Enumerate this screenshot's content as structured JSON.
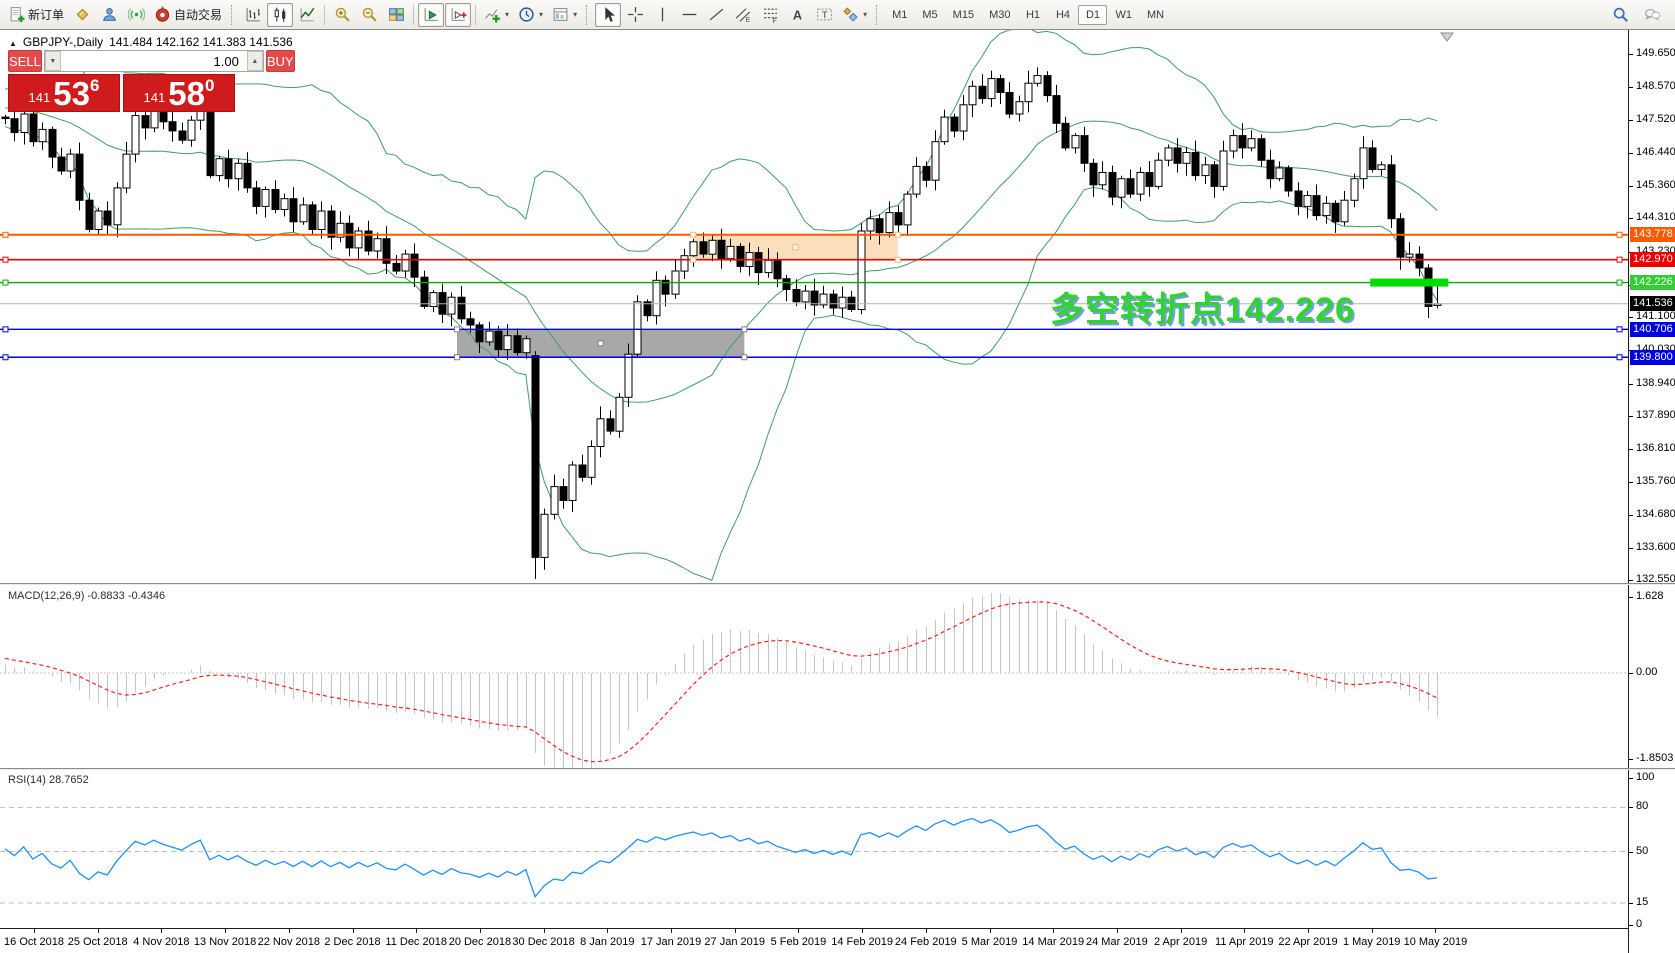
{
  "toolbar": {
    "caret_glyph": "▾",
    "file_group": [
      {
        "name": "new-order-button",
        "icon": "doc-plus",
        "label": "新订单"
      },
      {
        "name": "market-watch-button",
        "icon": "gold-diamond"
      },
      {
        "name": "accounts-button",
        "icon": "user-blue"
      },
      {
        "name": "signals-button",
        "icon": "signal-green"
      },
      {
        "name": "autotrading-button",
        "icon": "robot-red",
        "label": "自动交易"
      }
    ],
    "chart_type_group": [
      {
        "name": "bar-chart-button",
        "icon": "bars"
      },
      {
        "name": "candlestick-button",
        "icon": "candles",
        "active": true
      },
      {
        "name": "line-chart-button",
        "icon": "line"
      }
    ],
    "zoom_group": [
      {
        "name": "zoom-in-button",
        "icon": "zoom-in"
      },
      {
        "name": "zoom-out-button",
        "icon": "zoom-out"
      },
      {
        "name": "tile-windows-button",
        "icon": "tiles"
      }
    ],
    "scroll_group": [
      {
        "name": "auto-scroll-button",
        "icon": "auto-scroll",
        "active": true
      },
      {
        "name": "chart-shift-button",
        "icon": "chart-shift",
        "active": true
      }
    ],
    "insert_group": [
      {
        "name": "indicators-button",
        "icon": "indicator-plus",
        "caret": true
      },
      {
        "name": "periods-button",
        "icon": "clock",
        "caret": true
      },
      {
        "name": "templates-button",
        "icon": "template",
        "caret": true
      }
    ],
    "draw_group": [
      {
        "name": "cursor-button",
        "icon": "cursor",
        "active": true
      },
      {
        "name": "crosshair-button",
        "icon": "crosshair"
      },
      {
        "name": "vertical-line-button",
        "icon": "vline"
      },
      {
        "name": "horizontal-line-button",
        "icon": "hline"
      },
      {
        "name": "trendline-button",
        "icon": "trendline"
      },
      {
        "name": "equidistant-channel-button",
        "icon": "channel"
      },
      {
        "name": "fibonacci-button",
        "icon": "fibo"
      },
      {
        "name": "text-button",
        "icon": "text-a"
      },
      {
        "name": "text-label-button",
        "icon": "label-t"
      },
      {
        "name": "arrows-button",
        "icon": "shapes",
        "caret": true
      }
    ],
    "timeframes": [
      {
        "label": "M1"
      },
      {
        "label": "M5"
      },
      {
        "label": "M15"
      },
      {
        "label": "M30"
      },
      {
        "label": "H1"
      },
      {
        "label": "H4"
      },
      {
        "label": "D1",
        "active": true
      },
      {
        "label": "W1"
      },
      {
        "label": "MN"
      }
    ],
    "right_group": [
      {
        "name": "search-button",
        "icon": "search"
      },
      {
        "name": "chat-button",
        "icon": "chat"
      }
    ]
  },
  "chart_header": {
    "collapse_glyph": "▲",
    "symbol_period": "GBPJPY-,Daily",
    "ohlc": "141.484 142.162 141.383 141.536"
  },
  "trade_panel": {
    "sell_label": "SELL",
    "buy_label": "BUY",
    "volume": "1.00",
    "dec_glyph": "▼",
    "inc_glyph": "▲",
    "sell_price": {
      "prefix": "141",
      "big": "53",
      "sup": "6"
    },
    "buy_price": {
      "prefix": "141",
      "big": "58",
      "sup": "0"
    }
  },
  "annotation": {
    "text": "多空转折点142.226"
  },
  "panes": {
    "macd_label": "MACD(12,26,9) -0.8833 -0.4346",
    "rsi_label": "RSI(14) 28.7652"
  },
  "right_axis": {
    "price_ticks": [
      "149.650",
      "148.570",
      "147.520",
      "146.440",
      "145.360",
      "144.310",
      "143.230",
      "142.150",
      "141.100",
      "140.030",
      "138.940",
      "137.890",
      "136.810",
      "135.760",
      "134.680",
      "133.600",
      "132.550"
    ],
    "badges": [
      {
        "text": "143.778",
        "color": "#ff5a00"
      },
      {
        "text": "142.970",
        "color": "#ee0000"
      },
      {
        "text": "142.226",
        "color": "#33cc33"
      },
      {
        "text": "141.536",
        "color": "#000000"
      },
      {
        "text": "140.706",
        "color": "#0000dd"
      },
      {
        "text": "139.800",
        "color": "#0000dd"
      }
    ],
    "macd_ticks": [
      {
        "value": 1.628,
        "text": "1.628"
      },
      {
        "value": 0,
        "text": "0.00"
      },
      {
        "value": -1.8503,
        "text": "-1.8503"
      }
    ],
    "rsi_ticks": [
      {
        "value": 100,
        "text": "100"
      },
      {
        "value": 80,
        "text": "80"
      },
      {
        "value": 50,
        "text": "50"
      },
      {
        "value": 15,
        "text": "15"
      },
      {
        "value": 0,
        "text": "0"
      }
    ]
  },
  "colors": {
    "up": "#ffffff",
    "down": "#000000",
    "wick": "#000000",
    "bollinger": "#3da05f",
    "macd_hist": "#c4c4c4",
    "macd_signal": "#ff2020",
    "rsi": "#1e90ff",
    "line_orange": "#ff5a00",
    "line_red": "#ee0000",
    "line_green": "#0fa30f",
    "line_blue": "#0000e0",
    "bid_line": "#b4b4b4",
    "box_gray": "#a8a8a8",
    "box_peach": "#fbdfbd",
    "annotation_green": "#2fd42f",
    "annotation_shadow": "#7b9be8",
    "thick_green": "#00dd00"
  },
  "chart_data": {
    "type": "candlestick",
    "symbol": "GBPJPY-",
    "timeframe": "Daily",
    "last_candle": {
      "open": 141.484,
      "high": 142.162,
      "low": 141.383,
      "close": 141.536
    },
    "bid": 141.536,
    "y_axis_range": [
      132.43,
      150.43
    ],
    "pre_closes": [
      144.8,
      145.2,
      145.0,
      145.6,
      145.3,
      145.9,
      146.2,
      145.8,
      146.4,
      146.1,
      146.7,
      147.0,
      146.6,
      147.2,
      146.9,
      147.4,
      147.1,
      147.7,
      147.9,
      147.5,
      148.1,
      147.8,
      148.3,
      148.0,
      148.5,
      148.2,
      147.9,
      148.4,
      148.1,
      147.7,
      148.2,
      147.9,
      147.6,
      148.0,
      147.7,
      147.4,
      147.8,
      147.5,
      147.9,
      147.6
    ],
    "closes": [
      147.55,
      147.1,
      147.7,
      146.8,
      147.2,
      146.3,
      145.85,
      146.4,
      144.9,
      143.95,
      144.55,
      144.1,
      145.3,
      146.4,
      147.65,
      147.25,
      147.9,
      147.45,
      147.15,
      146.85,
      147.5,
      148.05,
      145.7,
      146.25,
      145.6,
      146.1,
      145.3,
      144.7,
      145.25,
      144.6,
      144.95,
      144.2,
      144.75,
      143.95,
      144.55,
      143.7,
      144.15,
      143.35,
      143.9,
      143.25,
      143.65,
      142.85,
      142.6,
      143.15,
      142.4,
      141.45,
      141.9,
      141.2,
      141.75,
      141.05,
      140.85,
      140.3,
      140.65,
      140.05,
      140.5,
      139.95,
      140.4,
      133.3,
      134.7,
      135.6,
      135.15,
      136.3,
      135.9,
      136.9,
      137.8,
      137.4,
      138.5,
      139.9,
      141.6,
      141.15,
      142.3,
      141.85,
      142.6,
      143.1,
      143.55,
      143.15,
      143.6,
      143.0,
      143.4,
      142.75,
      143.2,
      142.55,
      142.95,
      142.35,
      142.0,
      141.6,
      141.95,
      141.5,
      141.85,
      141.4,
      141.75,
      141.35,
      143.9,
      144.3,
      143.85,
      144.5,
      144.1,
      145.1,
      146.0,
      145.55,
      146.8,
      147.6,
      147.15,
      148.0,
      148.6,
      148.2,
      148.85,
      148.4,
      147.7,
      148.1,
      148.7,
      148.95,
      148.3,
      147.4,
      146.6,
      147.0,
      146.1,
      145.4,
      145.8,
      145.0,
      145.6,
      145.1,
      145.8,
      145.35,
      146.2,
      146.6,
      146.1,
      146.45,
      145.7,
      146.05,
      145.35,
      146.5,
      147.0,
      146.6,
      146.9,
      146.2,
      145.6,
      145.95,
      145.2,
      144.7,
      145.05,
      144.4,
      144.8,
      144.2,
      144.9,
      145.6,
      146.6,
      145.9,
      146.05,
      144.3,
      143.05,
      143.15,
      142.7,
      141.45,
      141.536
    ],
    "special_candles": {
      "57": [
        139.85,
        140.0,
        132.6,
        133.3
      ],
      "92": [
        141.35,
        144.15,
        141.2,
        143.9
      ],
      "154": [
        141.484,
        142.162,
        141.383,
        141.536
      ]
    },
    "levels": [
      {
        "price": 143.778,
        "color": "orange",
        "width": 2
      },
      {
        "price": 142.97,
        "color": "red",
        "width": 1.6
      },
      {
        "price": 142.226,
        "color": "green",
        "width": 1.4
      },
      {
        "price": 140.706,
        "color": "blue",
        "width": 1.4
      },
      {
        "price": 139.8,
        "color": "blue",
        "width": 1.4
      }
    ],
    "boxes": [
      {
        "from_price": 143.778,
        "to_price": 142.97,
        "x1_bar": 74,
        "x2_bar": 96,
        "fill": "peach"
      },
      {
        "from_price": 140.706,
        "to_price": 139.8,
        "x1_bar": 48.6,
        "x2_bar": 79.5,
        "fill": "gray"
      }
    ],
    "highlight_segment": {
      "price": 142.226,
      "x1_bar": 146.8,
      "x2_bar": 155.2,
      "thickness": 8
    },
    "indicators": {
      "bollinger": {
        "period": 20,
        "deviation": 2
      },
      "macd": {
        "fast": 12,
        "slow": 26,
        "signal": 9,
        "value": -0.8833,
        "signal_value": -0.4346,
        "axis_range": [
          -1.8503,
          1.628
        ]
      },
      "rsi": {
        "period": 14,
        "value": 28.7652,
        "levels": [
          80,
          50,
          15
        ],
        "axis_range": [
          0,
          100
        ]
      }
    },
    "x_axis": {
      "labels": [
        "16 Oct 2018",
        "25 Oct 2018",
        "4 Nov 2018",
        "13 Nov 2018",
        "22 Nov 2018",
        "2 Dec 2018",
        "11 Dec 2018",
        "20 Dec 2018",
        "30 Dec 2018",
        "8 Jan 2019",
        "17 Jan 2019",
        "27 Jan 2019",
        "5 Feb 2019",
        "14 Feb 2019",
        "24 Feb 2019",
        "5 Mar 2019",
        "14 Mar 2019",
        "24 Mar 2019",
        "2 Apr 2019",
        "11 Apr 2019",
        "22 Apr 2019",
        "1 May 2019",
        "10 May 2019"
      ]
    }
  }
}
